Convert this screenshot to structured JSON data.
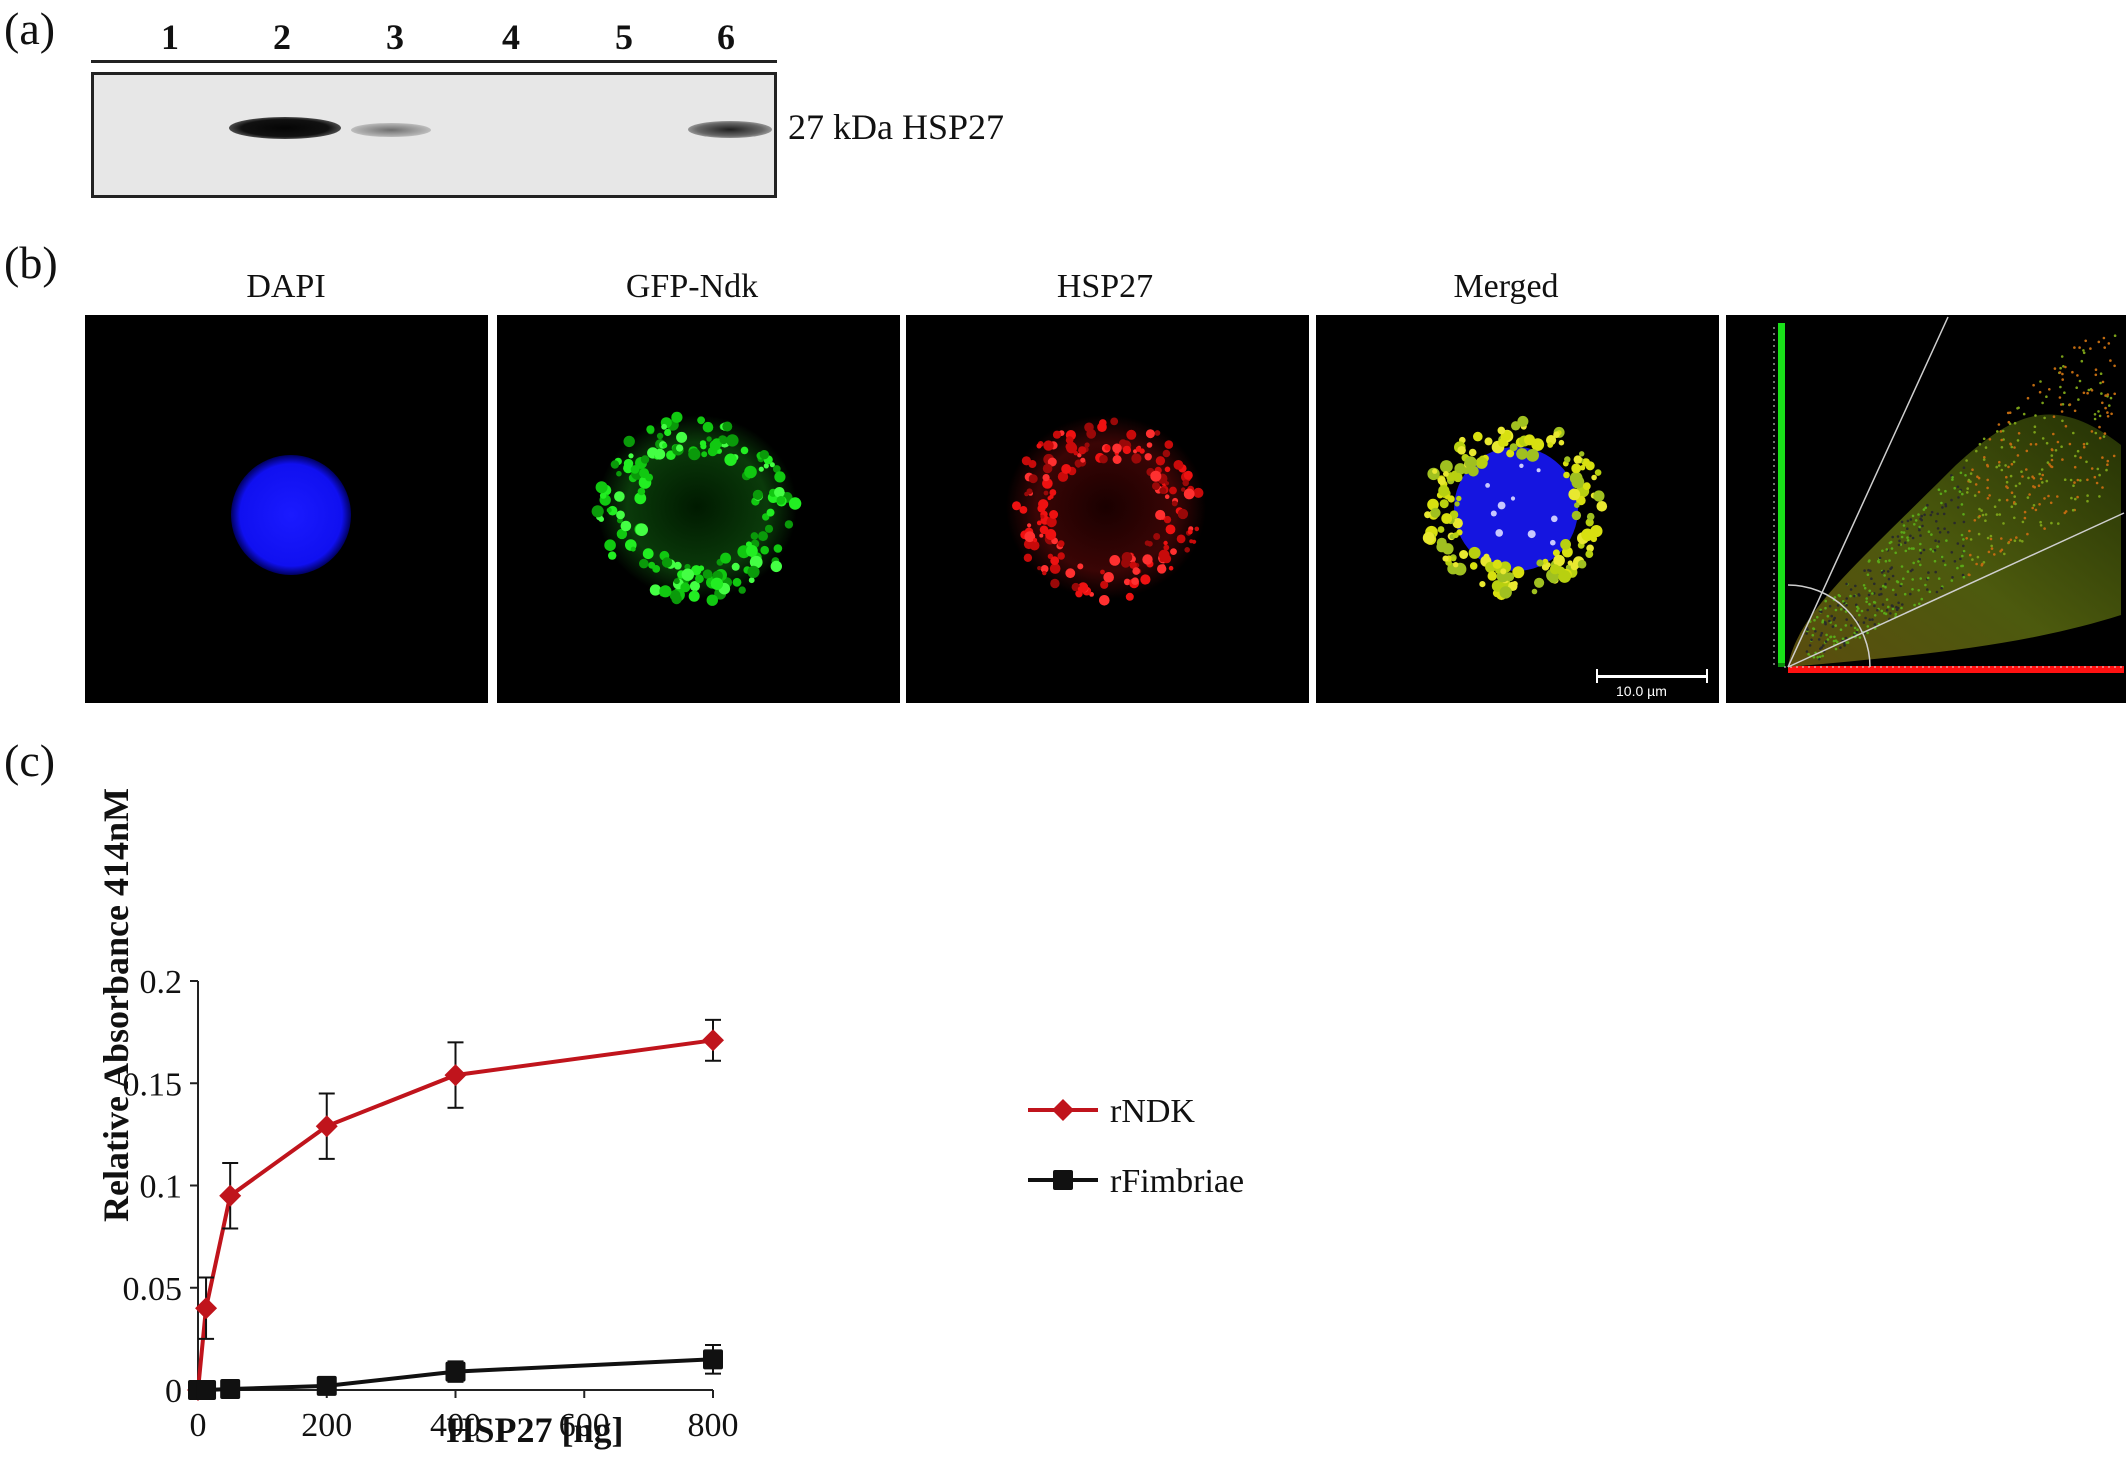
{
  "panel_a": {
    "letter": "(a)",
    "lanes": [
      "1",
      "2",
      "3",
      "4",
      "5",
      "6"
    ],
    "band_label": "27 kDa HSP27",
    "relative_intensity": [
      0,
      1.0,
      0.35,
      0,
      0,
      0.6
    ]
  },
  "panel_b": {
    "letter": "(b)",
    "labels": [
      "DAPI",
      "GFP-Ndk",
      "HSP27",
      "Merged"
    ],
    "scale_bar": "10.0 µm"
  },
  "panel_c": {
    "letter": "(c)"
  },
  "chart_data": {
    "type": "line",
    "xlabel": "HSP27 [ng]",
    "ylabel": "Relative Absorbance  414nM",
    "xlim": [
      0,
      800
    ],
    "ylim": [
      0,
      0.2
    ],
    "xticks": [
      "0",
      "200",
      "400",
      "600",
      "800"
    ],
    "yticks": [
      "0",
      "0.05",
      "0.1",
      "0.15",
      "0.2"
    ],
    "legend_position": "right",
    "series": [
      {
        "name": "rNDK",
        "color": "#c0141c",
        "marker": "diamond",
        "x": [
          0,
          12.5,
          50,
          200,
          400,
          800
        ],
        "y": [
          0,
          0.04,
          0.095,
          0.129,
          0.154,
          0.171
        ],
        "err": [
          0,
          0.015,
          0.016,
          0.016,
          0.016,
          0.01
        ]
      },
      {
        "name": "rFimbriae",
        "color": "#111111",
        "marker": "square",
        "x": [
          0,
          12.5,
          50,
          200,
          400,
          800
        ],
        "y": [
          0,
          0,
          0.0005,
          0.002,
          0.009,
          0.015
        ],
        "err": [
          0,
          0,
          0,
          0.002,
          0.005,
          0.007
        ]
      }
    ]
  }
}
